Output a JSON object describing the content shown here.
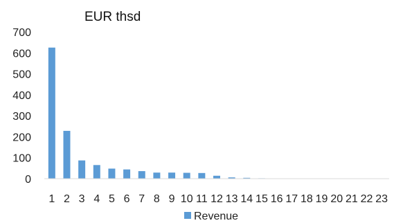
{
  "chart_data": {
    "type": "bar",
    "title": "",
    "unit_label": "EUR thsd",
    "xlabel": "",
    "ylabel": "",
    "categories": [
      "1",
      "2",
      "3",
      "4",
      "5",
      "6",
      "7",
      "8",
      "9",
      "10",
      "11",
      "12",
      "13",
      "14",
      "15",
      "16",
      "17",
      "18",
      "19",
      "20",
      "21",
      "22",
      "23"
    ],
    "series": [
      {
        "name": "Revenue",
        "color": "#5B9BD5",
        "values": [
          625,
          228,
          87,
          65,
          48,
          44,
          36,
          29,
          29,
          28,
          27,
          14,
          6,
          4,
          2,
          1,
          1,
          1,
          0,
          0,
          0,
          0,
          0
        ]
      }
    ],
    "ylim": [
      0,
      700
    ],
    "yticks": [
      "0",
      "100",
      "200",
      "300",
      "400",
      "500",
      "600",
      "700"
    ],
    "grid": false,
    "legend": "bottom"
  }
}
